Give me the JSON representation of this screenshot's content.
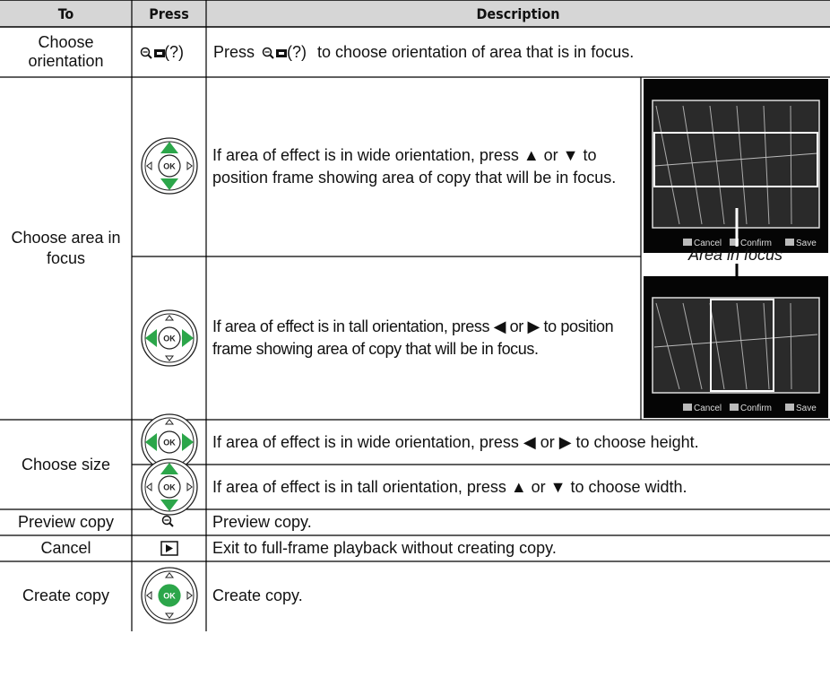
{
  "header": {
    "to": "To",
    "press": "Press",
    "description": "Description"
  },
  "icon_labels": {
    "ok": "OK"
  },
  "rows": [
    {
      "to": "Choose orientation",
      "press": {
        "key": "(?)"
      },
      "description": {
        "before": "Press",
        "key": "(?)",
        "after": "to choose orientation of area that is in focus."
      }
    },
    {
      "to": "Choose area in focus",
      "steps": [
        {
          "description": "If area of effect is in wide orientation, press ▲ or ▼ to position frame showing area of copy that will be in focus."
        },
        {
          "description": "If area of effect is in tall orientation, press ◀ or ▶ to position frame showing area of copy that will be in focus."
        }
      ],
      "figure": {
        "caption": "Area in focus",
        "screens": [
          {
            "controls": [
              "Cancel",
              "Confirm",
              "Save"
            ]
          },
          {
            "controls": [
              "Cancel",
              "Confirm",
              "Save"
            ]
          }
        ]
      }
    },
    {
      "to": "Choose size",
      "steps": [
        {
          "description": "If area of effect is in wide orientation, press ◀ or ▶ to choose height."
        },
        {
          "description": "If area of effect is in tall orientation, press ▲ or ▼ to choose width."
        }
      ]
    },
    {
      "to": "Preview copy",
      "description": "Preview copy."
    },
    {
      "to": "Cancel",
      "description": "Exit to full-frame playback without creating copy."
    },
    {
      "to": "Create copy",
      "description": "Create copy."
    }
  ]
}
